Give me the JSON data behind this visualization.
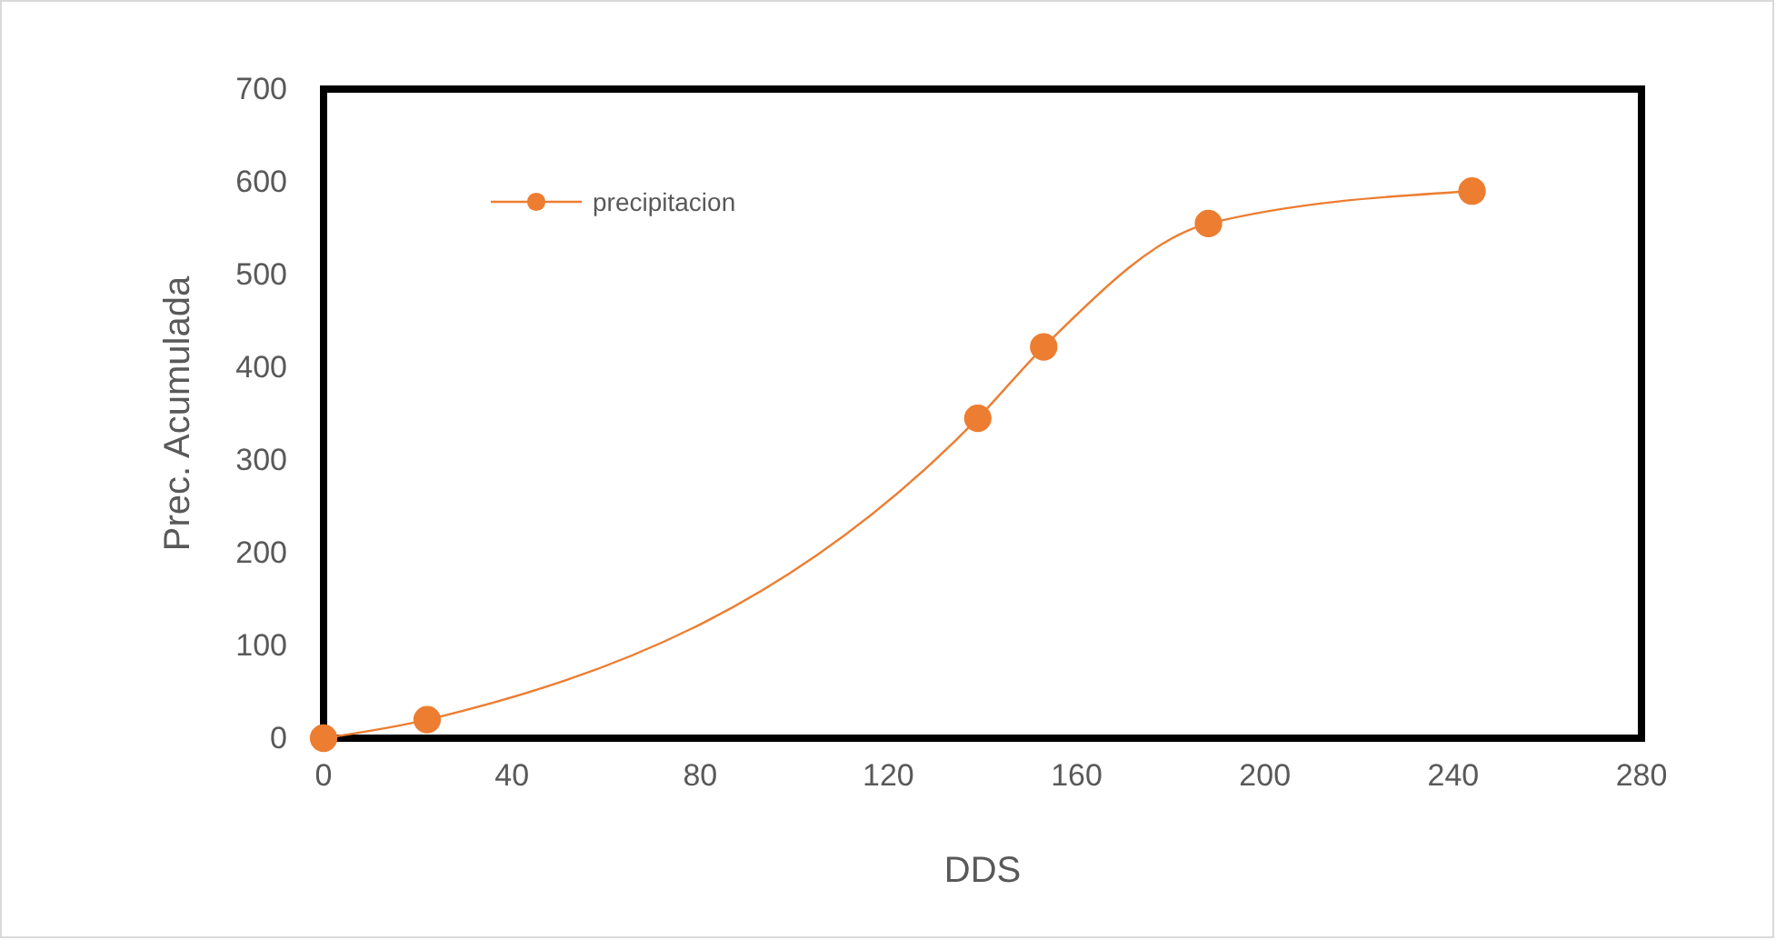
{
  "chart_data": {
    "type": "line",
    "xlabel": "DDS",
    "ylabel": "Prec. Acumulada",
    "x": [
      0,
      22,
      139,
      153,
      188,
      244
    ],
    "series": [
      {
        "name": "precipitacion",
        "color": "#ed7d31",
        "values": [
          0,
          20,
          345,
          422,
          555,
          590
        ]
      }
    ],
    "xlim": [
      0,
      280
    ],
    "xticks": [
      0,
      40,
      80,
      120,
      160,
      200,
      240,
      280
    ],
    "ylim": [
      0,
      700
    ],
    "yticks": [
      0,
      100,
      200,
      300,
      400,
      500,
      600,
      700
    ],
    "grid": false,
    "legend": "top left",
    "marker": "circle",
    "line_style": "solid"
  }
}
